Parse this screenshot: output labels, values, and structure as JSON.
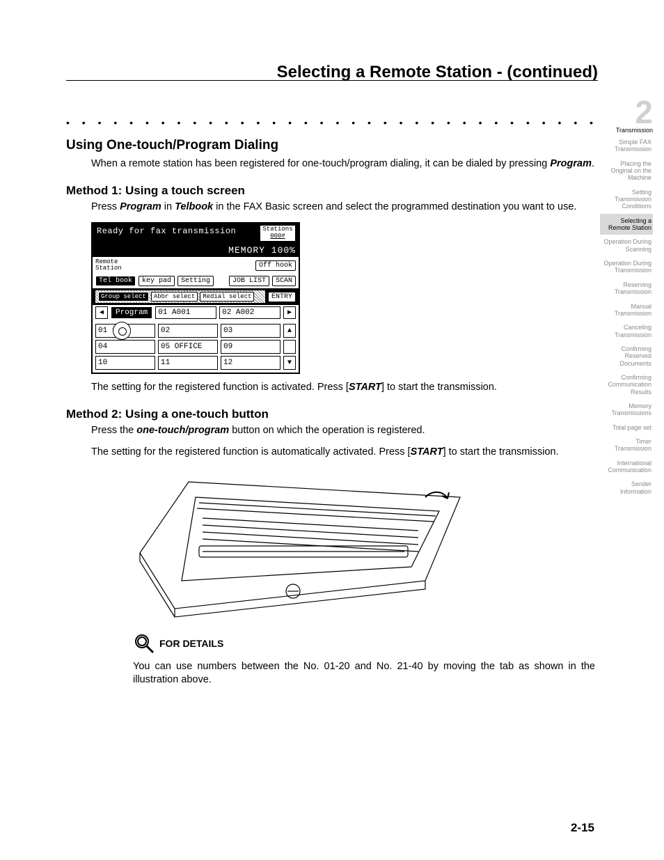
{
  "header": {
    "title": "Selecting a Remote Station -  (continued)"
  },
  "dots": "• • • • • • • • • • • • • • • • • • • • • • • • • • • • • • • • • • • • • • • • • • • • • • • • • • • • •",
  "section": {
    "h1": "Using One-touch/Program Dialing",
    "intro_a": "When a remote station has been registered for one-touch/program dialing, it can be dialed by pressing ",
    "intro_b": "Program",
    "intro_c": ".",
    "method1_h": "Method 1: Using a touch screen",
    "m1_a": "Press ",
    "m1_b": "Program",
    "m1_c": " in ",
    "m1_d": "Telbook",
    "m1_e": " in the FAX Basic screen and select the programmed destination you want to use.",
    "m1_after_a": "The setting for the registered function is activated. Press [",
    "m1_after_b": "START",
    "m1_after_c": "] to start the transmission.",
    "method2_h": "Method 2: Using a one-touch button",
    "m2_a": "Press the ",
    "m2_b": "one-touch/program",
    "m2_c": " button on which the operation is registered.",
    "m2_after_a": "The setting for the registered function is automatically activated. Press [",
    "m2_after_b": "START",
    "m2_after_c": "] to start the transmission.",
    "details_label": "FOR DETAILS",
    "details_text": "You can use numbers between the No. 01-20 and No. 21-40 by moving the tab as shown in the illustration above."
  },
  "fax": {
    "ready": "Ready for fax transmission",
    "stations_label": "Stations",
    "stations_value": "000#",
    "memory": "MEMORY 100%",
    "remote": "Remote\nStation",
    "offhook": "Off hook",
    "row_tabs": {
      "telbook": "Tel book",
      "keypad": "key pad",
      "setting": "Setting",
      "joblist": "JOB LIST",
      "scan": "SCAN"
    },
    "row_sel": {
      "group": "Group select",
      "abbr": "Abbr select",
      "redial": "Redial select",
      "entry": "ENTRY"
    },
    "program": "Program",
    "prog_cells": [
      "01 A001",
      "02 A002"
    ],
    "grid": [
      [
        "01 tsd",
        "02",
        "03"
      ],
      [
        "04",
        "05 OFFICE",
        "09"
      ],
      [
        "10",
        "11",
        "12"
      ]
    ]
  },
  "sidebar": {
    "chapter_num": "2",
    "chapter_label": "Transmission",
    "items": [
      "Simple FAX Transmission",
      "Placing the Original on the Machine",
      "Setting Transmission Conditions",
      "Selecting a Remote Station",
      "Operation During Scanning",
      "Operation During Transmission",
      "Reserving Transmission",
      "Manual Transmission",
      "Canceling Transmission",
      "Confirming Reserved Documents",
      "Confirming Communication Results",
      "Memory Transmissions",
      "Total page set",
      "Timer Transmission",
      "International Communication",
      "Sender Information"
    ],
    "active_index": 3
  },
  "page_number": "2-15"
}
